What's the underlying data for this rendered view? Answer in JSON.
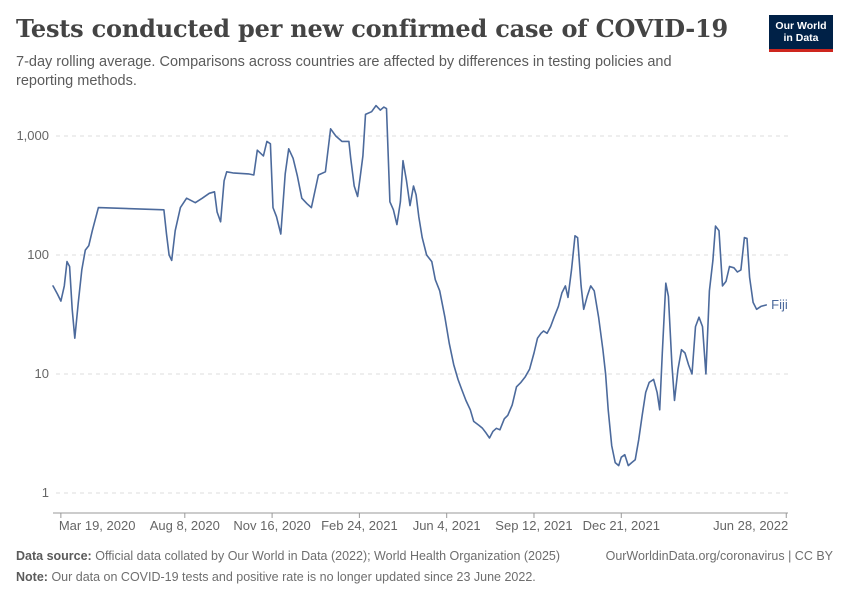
{
  "header": {
    "title": "Tests conducted per new confirmed case of COVID-19",
    "subtitle": "7-day rolling average. Comparisons across countries are affected by differences in testing policies and reporting methods.",
    "logo_line1": "Our World",
    "logo_line2": "in Data"
  },
  "footer": {
    "source_label": "Data source:",
    "source_text": "Official data collated by Our World in Data (2022); World Health Organization (2025)",
    "url_text": "OurWorldinData.org/coronavirus | CC BY",
    "note_label": "Note:",
    "note_text": "Our data on COVID-19 tests and positive rate is no longer updated since 23 June 2022."
  },
  "colors": {
    "line": "#4c6a9c",
    "grid": "#dddddd",
    "axis": "#999999",
    "logo_bg": "#002147",
    "logo_bar": "#ce261e"
  },
  "chart_data": {
    "type": "line",
    "title": "Tests conducted per new confirmed case of COVID-19",
    "xlabel": "",
    "ylabel": "",
    "yscale": "log",
    "ylim": [
      1,
      2000
    ],
    "xlim": [
      "2020-03-10",
      "2022-06-30"
    ],
    "y_ticks": [
      {
        "value": 1,
        "label": "1"
      },
      {
        "value": 10,
        "label": "10"
      },
      {
        "value": 100,
        "label": "100"
      },
      {
        "value": 1000,
        "label": "1,000"
      }
    ],
    "x_ticks": [
      {
        "date": "2020-03-19",
        "label": "Mar 19, 2020"
      },
      {
        "date": "2020-08-08",
        "label": "Aug 8, 2020"
      },
      {
        "date": "2020-11-16",
        "label": "Nov 16, 2020"
      },
      {
        "date": "2021-02-24",
        "label": "Feb 24, 2021"
      },
      {
        "date": "2021-06-04",
        "label": "Jun 4, 2021"
      },
      {
        "date": "2021-09-12",
        "label": "Sep 12, 2021"
      },
      {
        "date": "2021-12-21",
        "label": "Dec 21, 2021"
      },
      {
        "date": "2022-06-28",
        "label": "Jun 28, 2022"
      }
    ],
    "series": [
      {
        "name": "Fiji",
        "points": [
          [
            "2020-03-10",
            55
          ],
          [
            "2020-03-15",
            47
          ],
          [
            "2020-03-19",
            41
          ],
          [
            "2020-03-23",
            55
          ],
          [
            "2020-03-26",
            88
          ],
          [
            "2020-03-29",
            80
          ],
          [
            "2020-04-01",
            35
          ],
          [
            "2020-04-04",
            20
          ],
          [
            "2020-04-08",
            40
          ],
          [
            "2020-04-12",
            75
          ],
          [
            "2020-04-16",
            110
          ],
          [
            "2020-04-20",
            120
          ],
          [
            "2020-04-24",
            160
          ],
          [
            "2020-05-01",
            250
          ],
          [
            "2020-07-15",
            240
          ],
          [
            "2020-07-18",
            150
          ],
          [
            "2020-07-21",
            100
          ],
          [
            "2020-07-24",
            90
          ],
          [
            "2020-07-28",
            160
          ],
          [
            "2020-08-03",
            250
          ],
          [
            "2020-08-10",
            300
          ],
          [
            "2020-08-20",
            275
          ],
          [
            "2020-08-28",
            300
          ],
          [
            "2020-09-05",
            330
          ],
          [
            "2020-09-11",
            340
          ],
          [
            "2020-09-14",
            230
          ],
          [
            "2020-09-18",
            190
          ],
          [
            "2020-09-22",
            420
          ],
          [
            "2020-09-25",
            500
          ],
          [
            "2020-10-02",
            490
          ],
          [
            "2020-10-20",
            480
          ],
          [
            "2020-10-26",
            470
          ],
          [
            "2020-10-30",
            760
          ],
          [
            "2020-11-06",
            680
          ],
          [
            "2020-11-10",
            900
          ],
          [
            "2020-11-14",
            860
          ],
          [
            "2020-11-17",
            250
          ],
          [
            "2020-11-21",
            210
          ],
          [
            "2020-11-26",
            150
          ],
          [
            "2020-12-01",
            480
          ],
          [
            "2020-12-05",
            780
          ],
          [
            "2020-12-10",
            650
          ],
          [
            "2020-12-15",
            460
          ],
          [
            "2020-12-20",
            300
          ],
          [
            "2020-12-26",
            270
          ],
          [
            "2020-12-31",
            250
          ],
          [
            "2021-01-08",
            470
          ],
          [
            "2021-01-16",
            500
          ],
          [
            "2021-01-22",
            1150
          ],
          [
            "2021-01-28",
            1000
          ],
          [
            "2021-02-04",
            900
          ],
          [
            "2021-02-12",
            900
          ],
          [
            "2021-02-14",
            650
          ],
          [
            "2021-02-18",
            380
          ],
          [
            "2021-02-22",
            310
          ],
          [
            "2021-02-25",
            460
          ],
          [
            "2021-02-28",
            680
          ],
          [
            "2021-03-03",
            1520
          ],
          [
            "2021-03-10",
            1600
          ],
          [
            "2021-03-15",
            1800
          ],
          [
            "2021-03-20",
            1650
          ],
          [
            "2021-03-24",
            1750
          ],
          [
            "2021-03-27",
            1700
          ],
          [
            "2021-03-31",
            280
          ],
          [
            "2021-04-04",
            240
          ],
          [
            "2021-04-08",
            180
          ],
          [
            "2021-04-12",
            280
          ],
          [
            "2021-04-15",
            620
          ],
          [
            "2021-04-19",
            420
          ],
          [
            "2021-04-23",
            260
          ],
          [
            "2021-04-27",
            380
          ],
          [
            "2021-04-30",
            320
          ],
          [
            "2021-05-03",
            210
          ],
          [
            "2021-05-07",
            140
          ],
          [
            "2021-05-12",
            100
          ],
          [
            "2021-05-18",
            88
          ],
          [
            "2021-05-22",
            62
          ],
          [
            "2021-05-27",
            50
          ],
          [
            "2021-06-02",
            30
          ],
          [
            "2021-06-07",
            18
          ],
          [
            "2021-06-12",
            12
          ],
          [
            "2021-06-17",
            9
          ],
          [
            "2021-06-21",
            7.5
          ],
          [
            "2021-06-26",
            6
          ],
          [
            "2021-07-01",
            5
          ],
          [
            "2021-07-05",
            4
          ],
          [
            "2021-07-11",
            3.7
          ],
          [
            "2021-07-15",
            3.5
          ],
          [
            "2021-07-19",
            3.2
          ],
          [
            "2021-07-23",
            2.9
          ],
          [
            "2021-07-27",
            3.3
          ],
          [
            "2021-07-31",
            3.5
          ],
          [
            "2021-08-04",
            3.4
          ],
          [
            "2021-08-09",
            4.2
          ],
          [
            "2021-08-13",
            4.5
          ],
          [
            "2021-08-18",
            5.5
          ],
          [
            "2021-08-23",
            7.8
          ],
          [
            "2021-08-28",
            8.5
          ],
          [
            "2021-09-02",
            9.5
          ],
          [
            "2021-09-07",
            11
          ],
          [
            "2021-09-12",
            15
          ],
          [
            "2021-09-16",
            20
          ],
          [
            "2021-09-20",
            22
          ],
          [
            "2021-09-23",
            23
          ],
          [
            "2021-09-27",
            22
          ],
          [
            "2021-10-01",
            25
          ],
          [
            "2021-10-05",
            30
          ],
          [
            "2021-10-10",
            37
          ],
          [
            "2021-10-14",
            48
          ],
          [
            "2021-10-18",
            55
          ],
          [
            "2021-10-21",
            44
          ],
          [
            "2021-10-25",
            75
          ],
          [
            "2021-10-29",
            145
          ],
          [
            "2021-11-01",
            140
          ],
          [
            "2021-11-05",
            55
          ],
          [
            "2021-11-08",
            35
          ],
          [
            "2021-11-12",
            45
          ],
          [
            "2021-11-16",
            55
          ],
          [
            "2021-11-20",
            50
          ],
          [
            "2021-11-25",
            30
          ],
          [
            "2021-11-30",
            16
          ],
          [
            "2021-12-03",
            10
          ],
          [
            "2021-12-06",
            5
          ],
          [
            "2021-12-10",
            2.5
          ],
          [
            "2021-12-14",
            1.8
          ],
          [
            "2021-12-18",
            1.7
          ],
          [
            "2021-12-21",
            2.0
          ],
          [
            "2021-12-25",
            2.1
          ],
          [
            "2021-12-29",
            1.7
          ],
          [
            "2022-01-02",
            1.8
          ],
          [
            "2022-01-06",
            1.9
          ],
          [
            "2022-01-10",
            2.8
          ],
          [
            "2022-01-14",
            4.5
          ],
          [
            "2022-01-18",
            7
          ],
          [
            "2022-01-22",
            8.5
          ],
          [
            "2022-01-27",
            9
          ],
          [
            "2022-01-31",
            7
          ],
          [
            "2022-02-03",
            5
          ],
          [
            "2022-02-06",
            15
          ],
          [
            "2022-02-10",
            58
          ],
          [
            "2022-02-13",
            45
          ],
          [
            "2022-02-17",
            12
          ],
          [
            "2022-02-20",
            6
          ],
          [
            "2022-02-24",
            11
          ],
          [
            "2022-02-28",
            16
          ],
          [
            "2022-03-04",
            15
          ],
          [
            "2022-03-08",
            12
          ],
          [
            "2022-03-12",
            10
          ],
          [
            "2022-03-16",
            25
          ],
          [
            "2022-03-20",
            30
          ],
          [
            "2022-03-24",
            25
          ],
          [
            "2022-03-28",
            10
          ],
          [
            "2022-04-01",
            50
          ],
          [
            "2022-04-05",
            90
          ],
          [
            "2022-04-08",
            175
          ],
          [
            "2022-04-12",
            160
          ],
          [
            "2022-04-16",
            55
          ],
          [
            "2022-04-20",
            60
          ],
          [
            "2022-04-24",
            80
          ],
          [
            "2022-04-29",
            78
          ],
          [
            "2022-05-03",
            72
          ],
          [
            "2022-05-07",
            75
          ],
          [
            "2022-05-11",
            140
          ],
          [
            "2022-05-14",
            138
          ],
          [
            "2022-05-17",
            65
          ],
          [
            "2022-05-21",
            40
          ],
          [
            "2022-05-25",
            35
          ],
          [
            "2022-05-30",
            37
          ],
          [
            "2022-06-05",
            38
          ]
        ]
      }
    ]
  }
}
